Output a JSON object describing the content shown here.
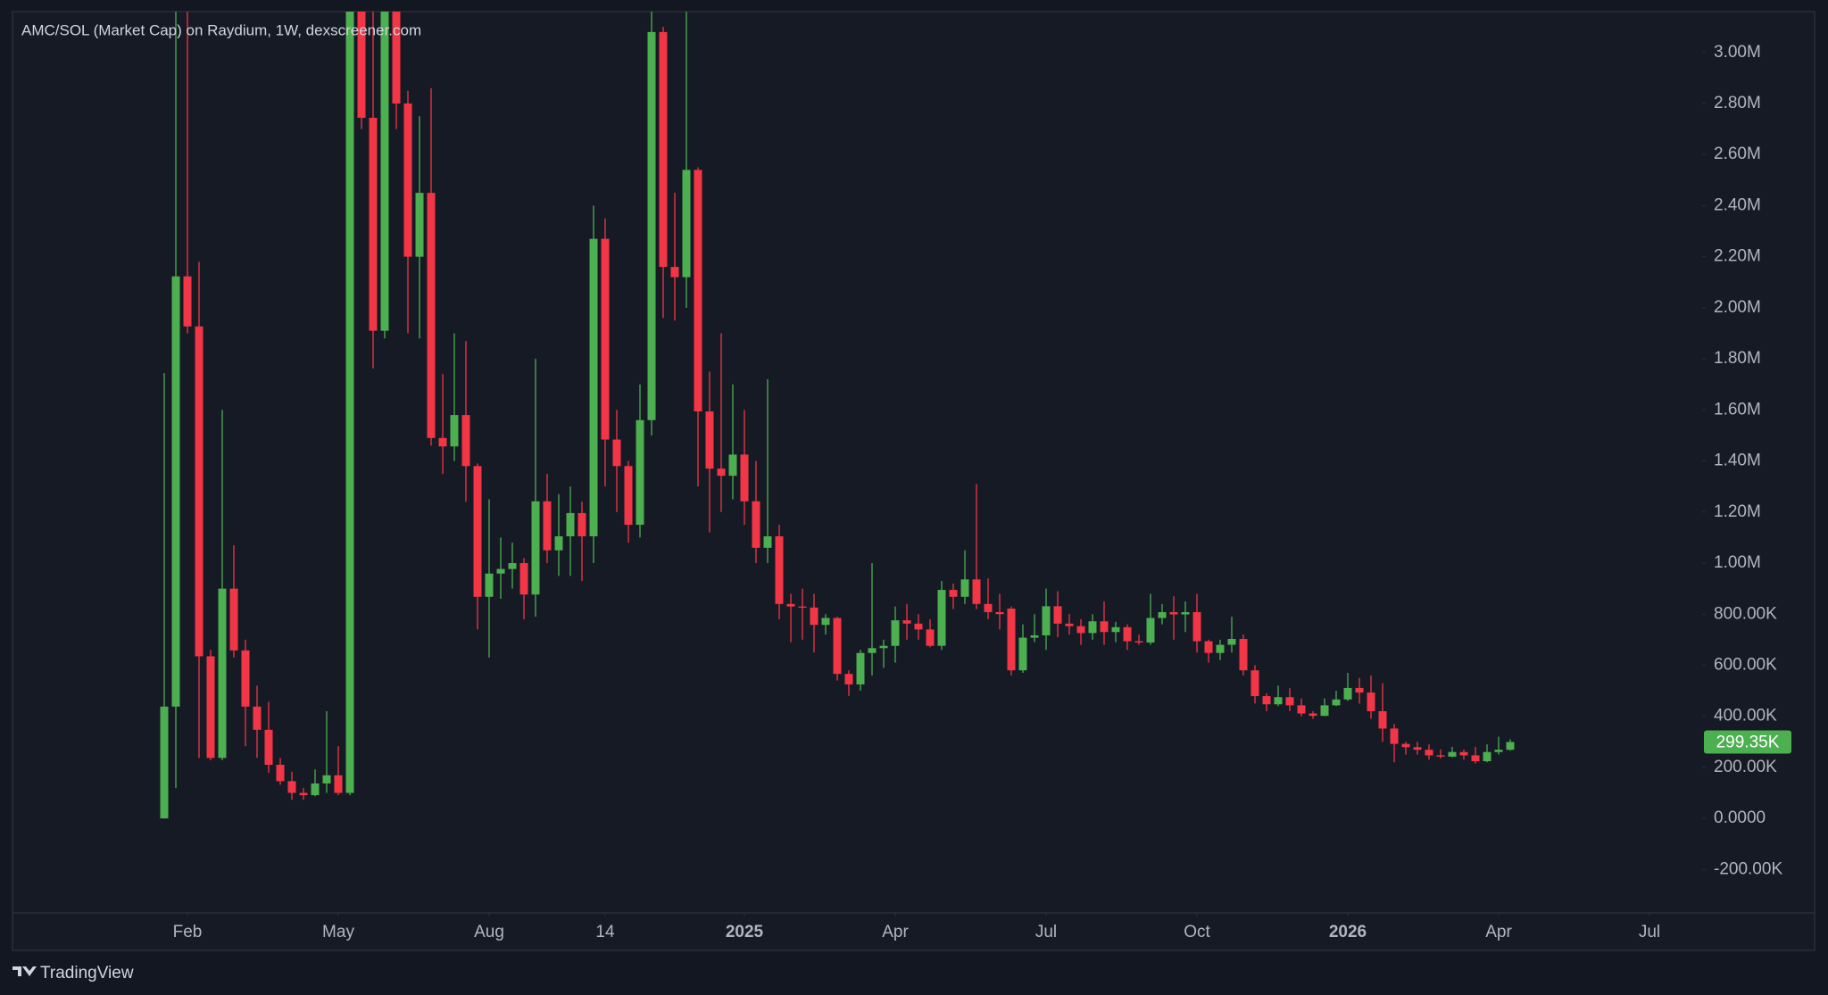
{
  "chart_data": {
    "type": "candlestick",
    "title": "AMC/SOL (Market Cap) on Raydium, 1W, dexscreener.com",
    "brand": "TradingView",
    "up_color": "#4caf50",
    "down_color": "#f23645",
    "categories": [
      null,
      null,
      null,
      null,
      null,
      null,
      null,
      null,
      null,
      null,
      null,
      null,
      null,
      null,
      null,
      null,
      null,
      null,
      null,
      null,
      null,
      null,
      null,
      null,
      null,
      null,
      null,
      null,
      null,
      null,
      null,
      null,
      null,
      null,
      null,
      null,
      null,
      null,
      null,
      null,
      null,
      null,
      null,
      null,
      null,
      null,
      null,
      null,
      null,
      null,
      null,
      null,
      null,
      null,
      null,
      null,
      null,
      null,
      null,
      null,
      null,
      null,
      null,
      null,
      null,
      null,
      null,
      null,
      null,
      null,
      null,
      null,
      null,
      null,
      null,
      null,
      null,
      null,
      null,
      null,
      null,
      null,
      null,
      null,
      null,
      null,
      null,
      null,
      null,
      null,
      null,
      null,
      null,
      null,
      null,
      null,
      null,
      null,
      null,
      null,
      null,
      null,
      null,
      null,
      null,
      null,
      null,
      null,
      null,
      null,
      null,
      null,
      null,
      null,
      null,
      null,
      null
    ],
    "open": [
      0,
      438000,
      2123000,
      1927000,
      635000,
      237000,
      900000,
      658000,
      438000,
      347000,
      210000,
      146000,
      100000,
      91000,
      137000,
      169000,
      100000,
      3500000,
      2744000,
      1910000,
      3300000,
      2800000,
      2200000,
      2450000,
      1490000,
      1457000,
      1580000,
      1380000,
      868000,
      959000,
      977000,
      1000000,
      877000,
      1242000,
      1050000,
      1105000,
      1196000,
      1105000,
      2270000,
      1484000,
      1380000,
      1150000,
      1560000,
      3080000,
      2160000,
      2120000,
      2540000,
      1594000,
      1370000,
      1342000,
      1425000,
      1242000,
      1060000,
      1105000,
      840000,
      830000,
      826000,
      758000,
      785000,
      566000,
      525000,
      648000,
      667000,
      676000,
      776000,
      763000,
      740000,
      676000,
      895000,
      868000,
      936000,
      840000,
      808000,
      822000,
      580000,
      708000,
      717000,
      831000,
      763000,
      753000,
      726000,
      772000,
      730000,
      749000,
      694000,
      689000,
      785000,
      808000,
      799000,
      808000,
      694000,
      648000,
      680000,
      703000,
      580000,
      479000,
      447000,
      475000,
      443000,
      411000,
      402000,
      443000,
      466000,
      511000,
      493000,
      420000,
      352000,
      292000,
      279000,
      269000,
      247000,
      242000,
      260000,
      247000,
      224000,
      260000,
      269000
    ],
    "high": [
      1744000,
      3300000,
      3250000,
      2180000,
      660000,
      1600000,
      1070000,
      700000,
      520000,
      457000,
      237000,
      183000,
      119000,
      192000,
      420000,
      283000,
      4000000,
      3700000,
      3300000,
      3600000,
      3400000,
      2850000,
      2750000,
      2860000,
      1740000,
      1900000,
      1870000,
      1390000,
      1250000,
      1100000,
      1080000,
      1020000,
      1800000,
      1350000,
      1270000,
      1300000,
      1240000,
      2400000,
      2350000,
      1600000,
      1400000,
      1700000,
      3200000,
      3100000,
      2450000,
      3200000,
      2550000,
      1750000,
      1900000,
      1700000,
      1600000,
      1400000,
      1720000,
      1150000,
      880000,
      900000,
      880000,
      800000,
      790000,
      580000,
      660000,
      1000000,
      700000,
      830000,
      840000,
      800000,
      780000,
      930000,
      920000,
      1050000,
      1310000,
      940000,
      880000,
      830000,
      760000,
      800000,
      900000,
      890000,
      800000,
      780000,
      800000,
      850000,
      770000,
      760000,
      720000,
      880000,
      840000,
      870000,
      850000,
      880000,
      700000,
      700000,
      790000,
      720000,
      600000,
      490000,
      520000,
      510000,
      470000,
      420000,
      470000,
      500000,
      570000,
      550000,
      560000,
      530000,
      370000,
      300000,
      300000,
      290000,
      270000,
      280000,
      270000,
      280000,
      290000,
      320000,
      310000
    ],
    "low": [
      0,
      119000,
      1900000,
      237000,
      228000,
      228000,
      630000,
      283000,
      237000,
      178000,
      132000,
      73000,
      73000,
      87000,
      100000,
      91000,
      91000,
      2700000,
      1763000,
      1880000,
      2700000,
      1900000,
      1880000,
      1460000,
      1350000,
      1400000,
      1240000,
      740000,
      630000,
      860000,
      900000,
      780000,
      790000,
      1000000,
      950000,
      950000,
      930000,
      1000000,
      1300000,
      1200000,
      1080000,
      1100000,
      1500000,
      1960000,
      1950000,
      2000000,
      1300000,
      1120000,
      1200000,
      1250000,
      1150000,
      1000000,
      1000000,
      780000,
      690000,
      700000,
      650000,
      720000,
      540000,
      480000,
      500000,
      560000,
      590000,
      610000,
      700000,
      700000,
      670000,
      660000,
      820000,
      840000,
      820000,
      780000,
      740000,
      560000,
      570000,
      690000,
      660000,
      710000,
      720000,
      680000,
      700000,
      680000,
      690000,
      660000,
      680000,
      680000,
      760000,
      700000,
      730000,
      650000,
      610000,
      620000,
      650000,
      560000,
      450000,
      420000,
      440000,
      420000,
      400000,
      390000,
      400000,
      440000,
      460000,
      450000,
      390000,
      300000,
      220000,
      250000,
      250000,
      230000,
      235000,
      240000,
      230000,
      215000,
      220000,
      250000,
      265000
    ],
    "close": [
      438000,
      2123000,
      1927000,
      635000,
      237000,
      900000,
      658000,
      438000,
      347000,
      210000,
      146000,
      100000,
      91000,
      137000,
      169000,
      100000,
      3500000,
      2744000,
      1910000,
      3300000,
      2800000,
      2200000,
      2450000,
      1490000,
      1457000,
      1580000,
      1380000,
      868000,
      959000,
      977000,
      1000000,
      877000,
      1242000,
      1050000,
      1105000,
      1196000,
      1105000,
      2270000,
      1484000,
      1380000,
      1150000,
      1560000,
      3080000,
      2160000,
      2120000,
      2540000,
      1594000,
      1370000,
      1342000,
      1425000,
      1242000,
      1060000,
      1105000,
      840000,
      830000,
      826000,
      758000,
      785000,
      566000,
      525000,
      648000,
      667000,
      676000,
      776000,
      763000,
      740000,
      676000,
      895000,
      868000,
      936000,
      840000,
      808000,
      800000,
      580000,
      708000,
      717000,
      831000,
      763000,
      753000,
      726000,
      772000,
      730000,
      749000,
      694000,
      689000,
      785000,
      808000,
      799000,
      808000,
      694000,
      648000,
      680000,
      703000,
      580000,
      479000,
      447000,
      475000,
      443000,
      411000,
      402000,
      443000,
      466000,
      511000,
      493000,
      420000,
      352000,
      292000,
      279000,
      269000,
      247000,
      242000,
      260000,
      247000,
      224000,
      260000,
      269000,
      299350
    ],
    "last_price": {
      "value": 299350,
      "label": "299.35K"
    },
    "ylim": [
      -370000,
      3160000
    ],
    "yticks": [
      {
        "value": -200000,
        "label": "-200.00K"
      },
      {
        "value": 0,
        "label": "0.0000"
      },
      {
        "value": 200000,
        "label": "200.00K"
      },
      {
        "value": 400000,
        "label": "400.00K"
      },
      {
        "value": 600000,
        "label": "600.00K"
      },
      {
        "value": 800000,
        "label": "800.00K"
      },
      {
        "value": 1000000,
        "label": "1.00M"
      },
      {
        "value": 1200000,
        "label": "1.20M"
      },
      {
        "value": 1400000,
        "label": "1.40M"
      },
      {
        "value": 1600000,
        "label": "1.60M"
      },
      {
        "value": 1800000,
        "label": "1.80M"
      },
      {
        "value": 2000000,
        "label": "2.00M"
      },
      {
        "value": 2200000,
        "label": "2.20M"
      },
      {
        "value": 2400000,
        "label": "2.40M"
      },
      {
        "value": 2600000,
        "label": "2.60M"
      },
      {
        "value": 2800000,
        "label": "2.80M"
      },
      {
        "value": 3000000,
        "label": "3.00M"
      }
    ],
    "xticks": [
      {
        "value": 2,
        "label": "Feb"
      },
      {
        "value": 15,
        "label": "May"
      },
      {
        "value": 28,
        "label": "Aug"
      },
      {
        "value": 38,
        "label": "14"
      },
      {
        "value": 50,
        "label": "2025"
      },
      {
        "value": 63,
        "label": "Apr"
      },
      {
        "value": 76,
        "label": "Jul"
      },
      {
        "value": 89,
        "label": "Oct"
      },
      {
        "value": 102,
        "label": "2026"
      },
      {
        "value": 115,
        "label": "Apr"
      },
      {
        "value": 128,
        "label": "Jul"
      }
    ],
    "grid": false
  }
}
